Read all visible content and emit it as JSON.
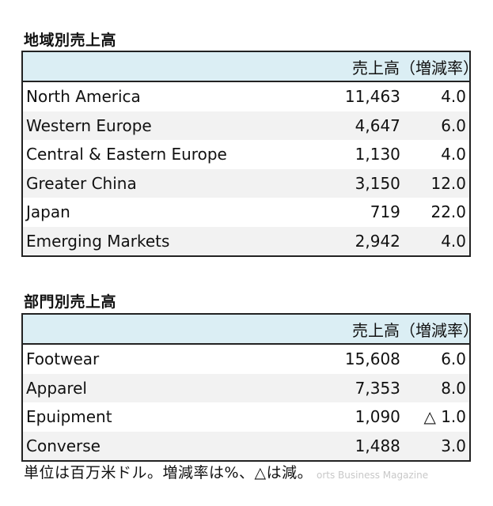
{
  "region": {
    "title": "地域別売上高",
    "header": {
      "sales": "売上高",
      "rate": "（増減率）"
    },
    "rows": [
      {
        "name": "North America",
        "sales": "11,463",
        "rate": "4.0"
      },
      {
        "name": "Western Europe",
        "sales": "4,647",
        "rate": "6.0"
      },
      {
        "name": "Central & Eastern Europe",
        "sales": "1,130",
        "rate": "4.0"
      },
      {
        "name": "Greater China",
        "sales": "3,150",
        "rate": "12.0"
      },
      {
        "name": "Japan",
        "sales": "719",
        "rate": "22.0"
      },
      {
        "name": "Emerging Markets",
        "sales": "2,942",
        "rate": "4.0"
      }
    ]
  },
  "division": {
    "title": "部門別売上高",
    "header": {
      "sales": "売上高",
      "rate": "（増減率）"
    },
    "rows": [
      {
        "name": "Footwear",
        "sales": "15,608",
        "rate": "6.0"
      },
      {
        "name": "Apparel",
        "sales": "7,353",
        "rate": "8.0"
      },
      {
        "name": "Epuipment",
        "sales": "1,090",
        "rate": "△ 1.0"
      },
      {
        "name": "Converse",
        "sales": "1,488",
        "rate": "3.0"
      }
    ]
  },
  "footnote": "単位は百万米ドル。増減率は%、△は減。",
  "watermark": "orts Business Magazine"
}
